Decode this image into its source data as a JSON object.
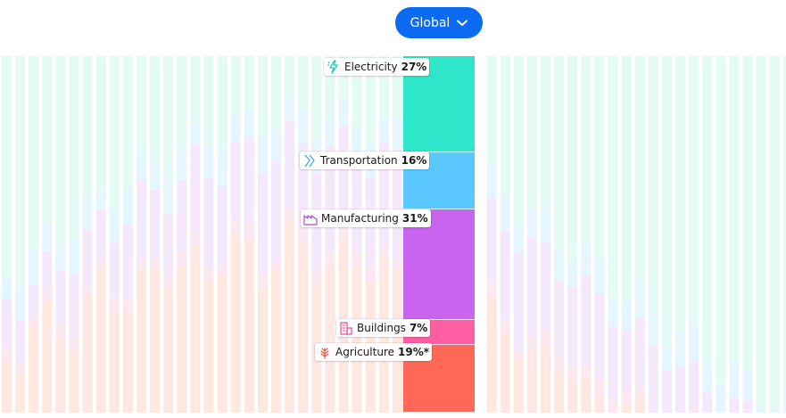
{
  "region_selector": {
    "label": "Global"
  },
  "colors": {
    "electricity": "#2ee6c9",
    "transportation": "#5bc8ff",
    "manufacturing": "#c964ee",
    "buildings": "#ff5fa2",
    "agriculture": "#ff6857"
  },
  "chart_data": {
    "type": "bar",
    "stacked": true,
    "orientation": "vertical",
    "ylim": [
      0,
      100
    ],
    "series": [
      {
        "key": "electricity",
        "name": "Electricity",
        "value": 27,
        "display": "27%",
        "icon": "lightning-icon"
      },
      {
        "key": "transportation",
        "name": "Transportation",
        "value": 16,
        "display": "16%",
        "icon": "road-icon"
      },
      {
        "key": "manufacturing",
        "name": "Manufacturing",
        "value": 31,
        "display": "31%",
        "icon": "factory-icon"
      },
      {
        "key": "buildings",
        "name": "Buildings",
        "value": 7,
        "display": "7%",
        "icon": "building-icon"
      },
      {
        "key": "agriculture",
        "name": "Agriculture",
        "value": 19,
        "display": "19%*",
        "icon": "wheat-icon"
      }
    ]
  }
}
